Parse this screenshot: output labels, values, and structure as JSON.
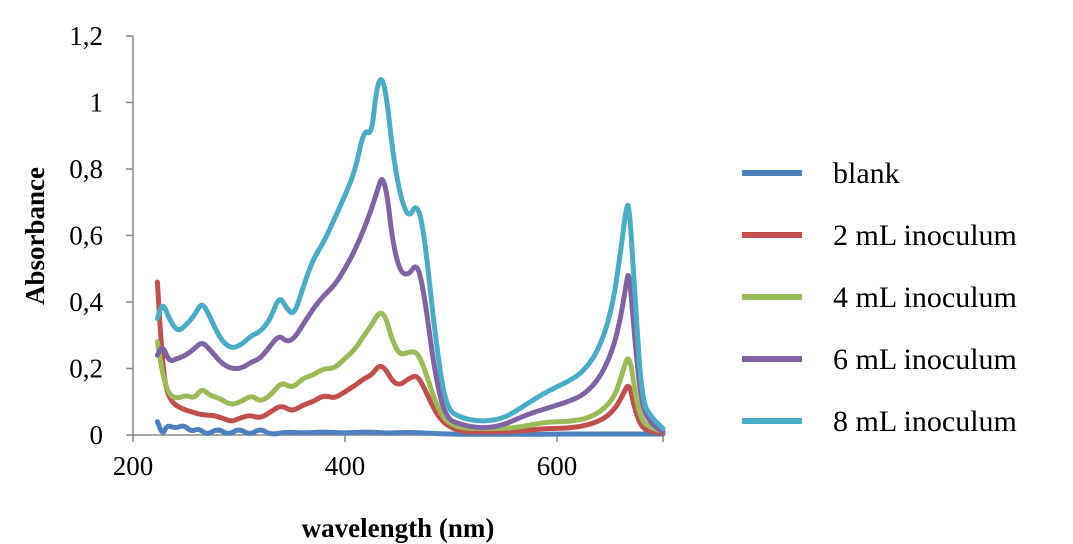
{
  "chart_data": {
    "type": "line",
    "title": "",
    "xlabel": "wavelength (nm)",
    "ylabel": "Absorbance",
    "xlim": [
      200,
      700
    ],
    "ylim": [
      0,
      1.2
    ],
    "x_ticks": [
      200,
      400,
      600
    ],
    "x_tick_labels": [
      "200",
      "400",
      "600"
    ],
    "y_ticks": [
      0,
      0.2,
      0.4,
      0.6,
      0.8,
      1.0,
      1.2
    ],
    "y_tick_labels": [
      "0",
      "0,2",
      "0,4",
      "0,6",
      "0,8",
      "1",
      "1,2"
    ],
    "grid": false,
    "legend_position": "right",
    "series": [
      {
        "name": "blank",
        "color": "#4F81BD",
        "points": [
          [
            223,
            0.04
          ],
          [
            228,
            0.0
          ],
          [
            232,
            0.03
          ],
          [
            240,
            0.02
          ],
          [
            248,
            0.03
          ],
          [
            255,
            0.01
          ],
          [
            262,
            0.02
          ],
          [
            270,
            0.0
          ],
          [
            280,
            0.02
          ],
          [
            290,
            0.0
          ],
          [
            300,
            0.02
          ],
          [
            310,
            0.0
          ],
          [
            320,
            0.02
          ],
          [
            330,
            0.0
          ],
          [
            345,
            0.01
          ],
          [
            360,
            0.005
          ],
          [
            380,
            0.01
          ],
          [
            400,
            0.005
          ],
          [
            420,
            0.01
          ],
          [
            440,
            0.005
          ],
          [
            460,
            0.008
          ],
          [
            480,
            0.005
          ],
          [
            500,
            0.003
          ],
          [
            520,
            0.002
          ],
          [
            550,
            0.002
          ],
          [
            580,
            0.002
          ],
          [
            600,
            0.003
          ],
          [
            630,
            0.003
          ],
          [
            660,
            0.003
          ],
          [
            680,
            0.003
          ],
          [
            700,
            0.003
          ]
        ]
      },
      {
        "name": "2 mL inoculum",
        "color": "#C0504D",
        "points": [
          [
            223,
            0.46
          ],
          [
            226,
            0.3
          ],
          [
            230,
            0.15
          ],
          [
            236,
            0.1
          ],
          [
            245,
            0.08
          ],
          [
            255,
            0.07
          ],
          [
            265,
            0.06
          ],
          [
            275,
            0.06
          ],
          [
            285,
            0.05
          ],
          [
            293,
            0.04
          ],
          [
            300,
            0.05
          ],
          [
            310,
            0.06
          ],
          [
            320,
            0.05
          ],
          [
            330,
            0.07
          ],
          [
            340,
            0.09
          ],
          [
            350,
            0.07
          ],
          [
            360,
            0.09
          ],
          [
            370,
            0.1
          ],
          [
            380,
            0.12
          ],
          [
            390,
            0.11
          ],
          [
            400,
            0.13
          ],
          [
            410,
            0.15
          ],
          [
            418,
            0.17
          ],
          [
            425,
            0.18
          ],
          [
            432,
            0.21
          ],
          [
            438,
            0.2
          ],
          [
            445,
            0.16
          ],
          [
            452,
            0.15
          ],
          [
            460,
            0.17
          ],
          [
            468,
            0.18
          ],
          [
            475,
            0.14
          ],
          [
            485,
            0.07
          ],
          [
            495,
            0.03
          ],
          [
            510,
            0.01
          ],
          [
            530,
            0.01
          ],
          [
            560,
            0.01
          ],
          [
            590,
            0.02
          ],
          [
            610,
            0.02
          ],
          [
            630,
            0.03
          ],
          [
            645,
            0.05
          ],
          [
            655,
            0.08
          ],
          [
            662,
            0.12
          ],
          [
            668,
            0.16
          ],
          [
            673,
            0.08
          ],
          [
            680,
            0.02
          ],
          [
            690,
            0.01
          ],
          [
            700,
            0.005
          ]
        ]
      },
      {
        "name": "4 mL inoculum",
        "color": "#9BBB59",
        "points": [
          [
            223,
            0.28
          ],
          [
            228,
            0.18
          ],
          [
            234,
            0.12
          ],
          [
            242,
            0.11
          ],
          [
            250,
            0.12
          ],
          [
            258,
            0.11
          ],
          [
            265,
            0.14
          ],
          [
            272,
            0.12
          ],
          [
            282,
            0.11
          ],
          [
            292,
            0.09
          ],
          [
            302,
            0.1
          ],
          [
            312,
            0.12
          ],
          [
            320,
            0.1
          ],
          [
            330,
            0.12
          ],
          [
            340,
            0.16
          ],
          [
            350,
            0.14
          ],
          [
            360,
            0.17
          ],
          [
            370,
            0.18
          ],
          [
            380,
            0.2
          ],
          [
            390,
            0.2
          ],
          [
            400,
            0.23
          ],
          [
            410,
            0.26
          ],
          [
            418,
            0.3
          ],
          [
            425,
            0.33
          ],
          [
            432,
            0.37
          ],
          [
            438,
            0.36
          ],
          [
            445,
            0.28
          ],
          [
            452,
            0.24
          ],
          [
            460,
            0.25
          ],
          [
            468,
            0.25
          ],
          [
            475,
            0.2
          ],
          [
            485,
            0.1
          ],
          [
            495,
            0.04
          ],
          [
            510,
            0.02
          ],
          [
            530,
            0.02
          ],
          [
            560,
            0.02
          ],
          [
            590,
            0.04
          ],
          [
            610,
            0.04
          ],
          [
            630,
            0.05
          ],
          [
            645,
            0.08
          ],
          [
            655,
            0.12
          ],
          [
            662,
            0.19
          ],
          [
            668,
            0.25
          ],
          [
            674,
            0.12
          ],
          [
            680,
            0.04
          ],
          [
            690,
            0.02
          ],
          [
            700,
            0.01
          ]
        ]
      },
      {
        "name": "6 mL inoculum",
        "color": "#8064A2",
        "points": [
          [
            223,
            0.24
          ],
          [
            228,
            0.27
          ],
          [
            234,
            0.22
          ],
          [
            242,
            0.23
          ],
          [
            250,
            0.24
          ],
          [
            258,
            0.26
          ],
          [
            265,
            0.28
          ],
          [
            272,
            0.26
          ],
          [
            282,
            0.22
          ],
          [
            292,
            0.2
          ],
          [
            302,
            0.2
          ],
          [
            312,
            0.22
          ],
          [
            320,
            0.23
          ],
          [
            330,
            0.27
          ],
          [
            338,
            0.3
          ],
          [
            345,
            0.28
          ],
          [
            352,
            0.29
          ],
          [
            360,
            0.33
          ],
          [
            370,
            0.38
          ],
          [
            380,
            0.42
          ],
          [
            390,
            0.45
          ],
          [
            400,
            0.5
          ],
          [
            410,
            0.56
          ],
          [
            418,
            0.62
          ],
          [
            425,
            0.68
          ],
          [
            431,
            0.74
          ],
          [
            435,
            0.78
          ],
          [
            440,
            0.72
          ],
          [
            445,
            0.58
          ],
          [
            452,
            0.49
          ],
          [
            460,
            0.48
          ],
          [
            468,
            0.52
          ],
          [
            475,
            0.42
          ],
          [
            485,
            0.18
          ],
          [
            495,
            0.05
          ],
          [
            510,
            0.03
          ],
          [
            530,
            0.02
          ],
          [
            550,
            0.03
          ],
          [
            570,
            0.06
          ],
          [
            590,
            0.08
          ],
          [
            610,
            0.1
          ],
          [
            625,
            0.12
          ],
          [
            640,
            0.17
          ],
          [
            652,
            0.25
          ],
          [
            660,
            0.35
          ],
          [
            665,
            0.45
          ],
          [
            668,
            0.5
          ],
          [
            673,
            0.3
          ],
          [
            680,
            0.08
          ],
          [
            690,
            0.03
          ],
          [
            700,
            0.01
          ]
        ]
      },
      {
        "name": "8 mL inoculum",
        "color": "#4BACC6",
        "points": [
          [
            223,
            0.35
          ],
          [
            228,
            0.4
          ],
          [
            234,
            0.35
          ],
          [
            242,
            0.31
          ],
          [
            250,
            0.33
          ],
          [
            258,
            0.36
          ],
          [
            265,
            0.4
          ],
          [
            272,
            0.36
          ],
          [
            282,
            0.29
          ],
          [
            292,
            0.26
          ],
          [
            302,
            0.27
          ],
          [
            312,
            0.3
          ],
          [
            320,
            0.31
          ],
          [
            330,
            0.35
          ],
          [
            338,
            0.42
          ],
          [
            345,
            0.38
          ],
          [
            352,
            0.36
          ],
          [
            360,
            0.44
          ],
          [
            370,
            0.53
          ],
          [
            380,
            0.58
          ],
          [
            390,
            0.65
          ],
          [
            400,
            0.72
          ],
          [
            410,
            0.8
          ],
          [
            418,
            0.92
          ],
          [
            425,
            0.9
          ],
          [
            430,
            1.05
          ],
          [
            435,
            1.08
          ],
          [
            440,
            1.0
          ],
          [
            445,
            0.85
          ],
          [
            452,
            0.72
          ],
          [
            460,
            0.65
          ],
          [
            468,
            0.7
          ],
          [
            475,
            0.6
          ],
          [
            485,
            0.3
          ],
          [
            495,
            0.08
          ],
          [
            510,
            0.05
          ],
          [
            530,
            0.04
          ],
          [
            550,
            0.05
          ],
          [
            570,
            0.09
          ],
          [
            590,
            0.13
          ],
          [
            610,
            0.16
          ],
          [
            625,
            0.19
          ],
          [
            640,
            0.26
          ],
          [
            652,
            0.38
          ],
          [
            660,
            0.55
          ],
          [
            665,
            0.68
          ],
          [
            668,
            0.7
          ],
          [
            673,
            0.45
          ],
          [
            680,
            0.1
          ],
          [
            690,
            0.05
          ],
          [
            700,
            0.02
          ]
        ]
      }
    ]
  }
}
